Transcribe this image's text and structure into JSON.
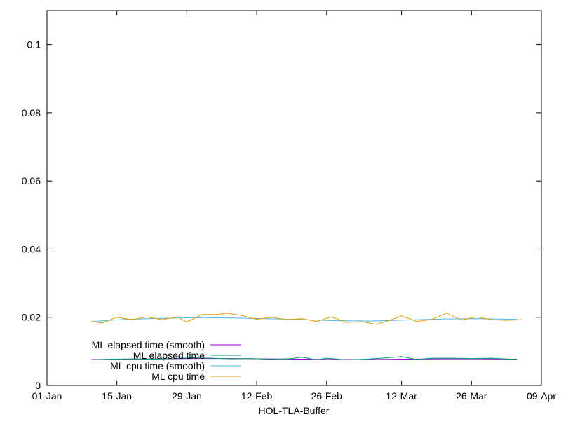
{
  "chart_data": {
    "type": "line",
    "xlabel": "HOL-TLA-Buffer",
    "ylabel": "",
    "title": "",
    "xlim": [
      "2024-01-01",
      "2024-04-09"
    ],
    "ylim": [
      0,
      0.11
    ],
    "x_ticks": [
      {
        "date": "2024-01-01",
        "label": "01-Jan"
      },
      {
        "date": "2024-01-15",
        "label": "15-Jan"
      },
      {
        "date": "2024-01-29",
        "label": "29-Jan"
      },
      {
        "date": "2024-02-12",
        "label": "12-Feb"
      },
      {
        "date": "2024-02-26",
        "label": "26-Feb"
      },
      {
        "date": "2024-03-12",
        "label": "12-Mar"
      },
      {
        "date": "2024-03-26",
        "label": "26-Mar"
      },
      {
        "date": "2024-04-09",
        "label": "09-Apr"
      }
    ],
    "y_ticks": [
      {
        "value": 0,
        "label": "0"
      },
      {
        "value": 0.02,
        "label": "0.02"
      },
      {
        "value": 0.04,
        "label": "0.04"
      },
      {
        "value": 0.06,
        "label": "0.06"
      },
      {
        "value": 0.08,
        "label": "0.08"
      },
      {
        "value": 0.1,
        "label": "0.1"
      }
    ],
    "legend_position": "bottom-left",
    "grid": false,
    "series": [
      {
        "name": "ML elapsed time (smooth)",
        "color": "#9400d3",
        "points": [
          [
            "2024-01-10",
            0.0076
          ],
          [
            "2024-01-17",
            0.0077
          ],
          [
            "2024-01-24",
            0.0078
          ],
          [
            "2024-01-31",
            0.0079
          ],
          [
            "2024-02-07",
            0.0079
          ],
          [
            "2024-02-14",
            0.0078
          ],
          [
            "2024-02-21",
            0.0077
          ],
          [
            "2024-02-28",
            0.0076
          ],
          [
            "2024-03-06",
            0.0076
          ],
          [
            "2024-03-13",
            0.0077
          ],
          [
            "2024-03-20",
            0.0078
          ],
          [
            "2024-03-27",
            0.0078
          ],
          [
            "2024-04-04",
            0.0077
          ]
        ]
      },
      {
        "name": "ML elapsed time",
        "color": "#009e73",
        "points": [
          [
            "2024-01-10",
            0.0075
          ],
          [
            "2024-01-14",
            0.0077
          ],
          [
            "2024-01-18",
            0.0078
          ],
          [
            "2024-01-22",
            0.0077
          ],
          [
            "2024-01-26",
            0.0079
          ],
          [
            "2024-01-30",
            0.0081
          ],
          [
            "2024-02-03",
            0.008
          ],
          [
            "2024-02-07",
            0.0078
          ],
          [
            "2024-02-11",
            0.0079
          ],
          [
            "2024-02-15",
            0.0076
          ],
          [
            "2024-02-19",
            0.0079
          ],
          [
            "2024-02-21",
            0.0083
          ],
          [
            "2024-02-24",
            0.0075
          ],
          [
            "2024-02-26",
            0.008
          ],
          [
            "2024-03-01",
            0.0075
          ],
          [
            "2024-03-05",
            0.0077
          ],
          [
            "2024-03-09",
            0.0081
          ],
          [
            "2024-03-12",
            0.0085
          ],
          [
            "2024-03-15",
            0.0076
          ],
          [
            "2024-03-18",
            0.008
          ],
          [
            "2024-03-22",
            0.008
          ],
          [
            "2024-03-26",
            0.0079
          ],
          [
            "2024-03-30",
            0.008
          ],
          [
            "2024-04-04",
            0.0076
          ]
        ]
      },
      {
        "name": "ML cpu time (smooth)",
        "color": "#56b4e9",
        "points": [
          [
            "2024-01-10",
            0.0188
          ],
          [
            "2024-01-17",
            0.0194
          ],
          [
            "2024-01-24",
            0.0197
          ],
          [
            "2024-01-31",
            0.0199
          ],
          [
            "2024-02-07",
            0.0198
          ],
          [
            "2024-02-14",
            0.0196
          ],
          [
            "2024-02-21",
            0.0193
          ],
          [
            "2024-02-28",
            0.019
          ],
          [
            "2024-03-06",
            0.0189
          ],
          [
            "2024-03-13",
            0.0192
          ],
          [
            "2024-03-20",
            0.0195
          ],
          [
            "2024-03-27",
            0.0196
          ],
          [
            "2024-04-04",
            0.0194
          ]
        ]
      },
      {
        "name": "ML cpu time",
        "color": "#e69f00",
        "points": [
          [
            "2024-01-10",
            0.0188
          ],
          [
            "2024-01-12",
            0.0183
          ],
          [
            "2024-01-15",
            0.02
          ],
          [
            "2024-01-18",
            0.0193
          ],
          [
            "2024-01-21",
            0.0201
          ],
          [
            "2024-01-24",
            0.0193
          ],
          [
            "2024-01-27",
            0.0201
          ],
          [
            "2024-01-29",
            0.0186
          ],
          [
            "2024-02-01",
            0.0208
          ],
          [
            "2024-02-04",
            0.0208
          ],
          [
            "2024-02-06",
            0.0212
          ],
          [
            "2024-02-09",
            0.0205
          ],
          [
            "2024-02-12",
            0.0194
          ],
          [
            "2024-02-15",
            0.02
          ],
          [
            "2024-02-18",
            0.0193
          ],
          [
            "2024-02-21",
            0.0196
          ],
          [
            "2024-02-24",
            0.0188
          ],
          [
            "2024-02-27",
            0.0201
          ],
          [
            "2024-03-01",
            0.0185
          ],
          [
            "2024-03-04",
            0.0187
          ],
          [
            "2024-03-07",
            0.0179
          ],
          [
            "2024-03-10",
            0.0193
          ],
          [
            "2024-03-12",
            0.0204
          ],
          [
            "2024-03-15",
            0.0188
          ],
          [
            "2024-03-18",
            0.0193
          ],
          [
            "2024-03-21",
            0.0212
          ],
          [
            "2024-03-24",
            0.0192
          ],
          [
            "2024-03-27",
            0.0201
          ],
          [
            "2024-03-30",
            0.0193
          ],
          [
            "2024-04-02",
            0.0191
          ],
          [
            "2024-04-05",
            0.0193
          ]
        ]
      }
    ]
  }
}
